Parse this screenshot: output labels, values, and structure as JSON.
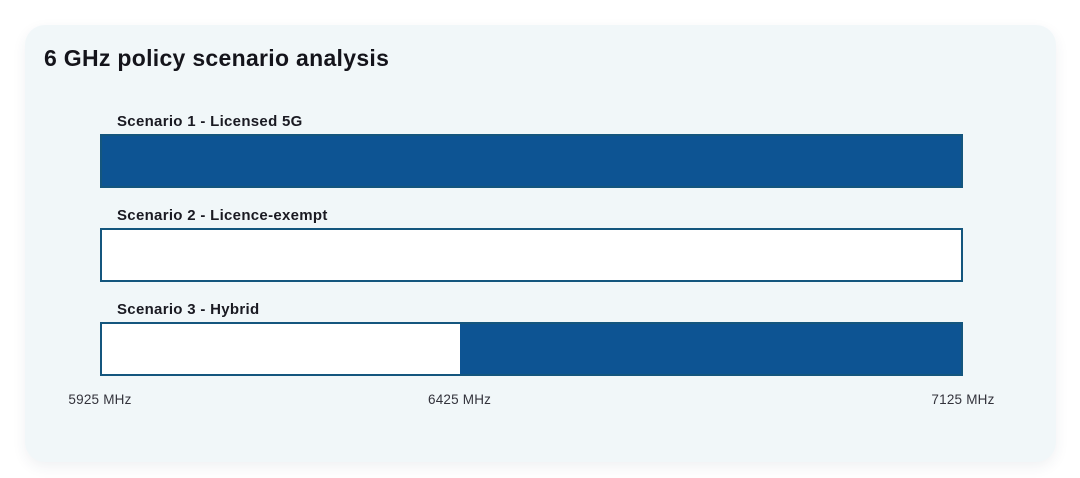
{
  "card": {
    "title": "6 GHz policy scenario analysis"
  },
  "chart_data": {
    "type": "bar",
    "title": "6 GHz policy scenario analysis",
    "orientation": "horizontal",
    "x_axis": {
      "unit": "MHz",
      "min": 5925,
      "max": 7125,
      "ticks": [
        {
          "value": 5925,
          "label": "5925 MHz"
        },
        {
          "value": 6425,
          "label": "6425 MHz"
        },
        {
          "value": 7125,
          "label": "7125 MHz"
        }
      ]
    },
    "scenarios": [
      {
        "label": "Scenario 1 - Licensed 5G",
        "segments": [
          {
            "from_mhz": 5925,
            "to_mhz": 7125,
            "type": "licensed"
          }
        ]
      },
      {
        "label": "Scenario 2 - Licence-exempt",
        "segments": [
          {
            "from_mhz": 5925,
            "to_mhz": 7125,
            "type": "licence_exempt"
          }
        ]
      },
      {
        "label": "Scenario 3 - Hybrid",
        "segments": [
          {
            "from_mhz": 5925,
            "to_mhz": 6425,
            "type": "licence_exempt"
          },
          {
            "from_mhz": 6425,
            "to_mhz": 7125,
            "type": "licensed"
          }
        ]
      }
    ],
    "colors": {
      "licensed": "#0d5493",
      "licence_exempt": "#ffffff",
      "bar_border": "#14567e",
      "card_background": "#f1f7f9",
      "title_text": "#14141b",
      "label_text": "#1a1a22",
      "tick_text": "#33333c"
    },
    "legend": null,
    "grid": false
  }
}
